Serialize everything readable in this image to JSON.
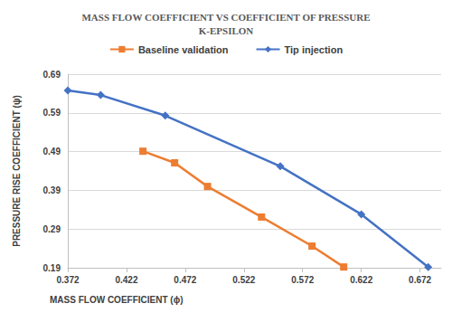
{
  "chart_data": {
    "type": "line",
    "title": "MASS FLOW COEFFICIENT VS COEFFICIENT OF PRESSURE K-EPSILON",
    "x_label": "MASS FLOW COEFFICIENT (ϕ)",
    "y_label": "PRESSURE RISE COEFFICIENT (ψ)",
    "series": [
      {
        "name": "Baseline validation",
        "color": "#ed7d31",
        "marker": "square",
        "x": [
          0.436,
          0.463,
          0.491,
          0.537,
          0.58,
          0.607
        ],
        "values": [
          0.491,
          0.461,
          0.4,
          0.321,
          0.246,
          0.192
        ]
      },
      {
        "name": "Tip injection",
        "color": "#4472c4",
        "marker": "diamond",
        "x": [
          0.372,
          0.4,
          0.455,
          0.553,
          0.622,
          0.679
        ],
        "values": [
          0.648,
          0.636,
          0.583,
          0.452,
          0.328,
          0.192
        ]
      }
    ],
    "xlim": [
      0.372,
      0.69
    ],
    "xticks": [
      0.372,
      0.422,
      0.472,
      0.522,
      0.572,
      0.622,
      0.672
    ],
    "ylim": [
      0.19,
      0.69
    ],
    "yticks": [
      0.19,
      0.29,
      0.39,
      0.49,
      0.59,
      0.69
    ],
    "grid": true,
    "legend": "top"
  }
}
